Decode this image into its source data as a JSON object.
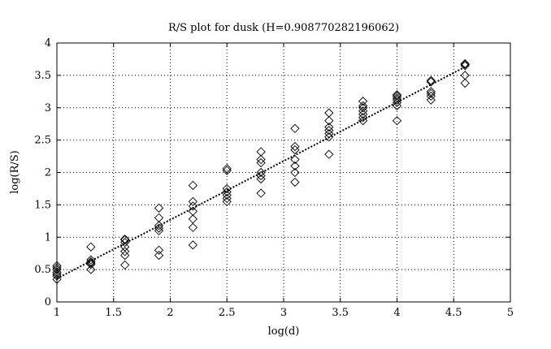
{
  "chart_data": {
    "type": "scatter",
    "title": "R/S plot for dusk (H=0.908770282196062)",
    "xlabel": "log(d)",
    "ylabel": "log(R/S)",
    "xlim": [
      1,
      5
    ],
    "ylim": [
      0,
      4
    ],
    "xticks": [
      1,
      1.5,
      2,
      2.5,
      3,
      3.5,
      4,
      4.5,
      5
    ],
    "yticks": [
      0,
      0.5,
      1,
      1.5,
      2,
      2.5,
      3,
      3.5,
      4
    ],
    "xtick_labels": [
      "1",
      "1.5",
      "2",
      "2.5",
      "3",
      "3.5",
      "4",
      "4.5",
      "5"
    ],
    "ytick_labels": [
      "0",
      "0.5",
      "1",
      "1.5",
      "2",
      "2.5",
      "3",
      "3.5",
      "4"
    ],
    "grid": true,
    "marker": "diamond",
    "series": [
      {
        "points": [
          [
            1.0,
            0.35
          ],
          [
            1.0,
            0.4
          ],
          [
            1.0,
            0.43
          ],
          [
            1.0,
            0.46
          ],
          [
            1.0,
            0.5
          ],
          [
            1.0,
            0.53
          ],
          [
            1.0,
            0.56
          ],
          [
            1.3,
            0.5
          ],
          [
            1.3,
            0.58
          ],
          [
            1.3,
            0.6
          ],
          [
            1.3,
            0.62
          ],
          [
            1.3,
            0.65
          ],
          [
            1.3,
            0.85
          ],
          [
            1.6,
            0.57
          ],
          [
            1.6,
            0.72
          ],
          [
            1.6,
            0.78
          ],
          [
            1.6,
            0.85
          ],
          [
            1.6,
            0.92
          ],
          [
            1.6,
            0.96
          ],
          [
            1.6,
            0.97
          ],
          [
            1.9,
            0.72
          ],
          [
            1.9,
            0.8
          ],
          [
            1.9,
            1.1
          ],
          [
            1.9,
            1.14
          ],
          [
            1.9,
            1.18
          ],
          [
            1.9,
            1.3
          ],
          [
            1.9,
            1.45
          ],
          [
            2.2,
            0.88
          ],
          [
            2.2,
            1.15
          ],
          [
            2.2,
            1.28
          ],
          [
            2.2,
            1.4
          ],
          [
            2.2,
            1.48
          ],
          [
            2.2,
            1.55
          ],
          [
            2.2,
            1.8
          ],
          [
            2.5,
            1.55
          ],
          [
            2.5,
            1.6
          ],
          [
            2.5,
            1.65
          ],
          [
            2.5,
            1.7
          ],
          [
            2.5,
            1.75
          ],
          [
            2.5,
            2.03
          ],
          [
            2.5,
            2.06
          ],
          [
            2.8,
            1.68
          ],
          [
            2.8,
            1.9
          ],
          [
            2.8,
            1.95
          ],
          [
            2.8,
            2.0
          ],
          [
            2.8,
            2.15
          ],
          [
            2.8,
            2.2
          ],
          [
            2.8,
            2.32
          ],
          [
            3.1,
            1.85
          ],
          [
            3.1,
            2.0
          ],
          [
            3.1,
            2.1
          ],
          [
            3.1,
            2.2
          ],
          [
            3.1,
            2.35
          ],
          [
            3.1,
            2.4
          ],
          [
            3.1,
            2.68
          ],
          [
            3.4,
            2.28
          ],
          [
            3.4,
            2.55
          ],
          [
            3.4,
            2.6
          ],
          [
            3.4,
            2.65
          ],
          [
            3.4,
            2.7
          ],
          [
            3.4,
            2.8
          ],
          [
            3.4,
            2.92
          ],
          [
            3.7,
            2.8
          ],
          [
            3.7,
            2.85
          ],
          [
            3.7,
            2.9
          ],
          [
            3.7,
            2.95
          ],
          [
            3.7,
            3.0
          ],
          [
            3.7,
            3.03
          ],
          [
            3.7,
            3.1
          ],
          [
            4.0,
            2.8
          ],
          [
            4.0,
            3.03
          ],
          [
            4.0,
            3.08
          ],
          [
            4.0,
            3.12
          ],
          [
            4.0,
            3.15
          ],
          [
            4.0,
            3.18
          ],
          [
            4.0,
            3.2
          ],
          [
            4.3,
            3.12
          ],
          [
            4.3,
            3.18
          ],
          [
            4.3,
            3.22
          ],
          [
            4.3,
            3.25
          ],
          [
            4.3,
            3.4
          ],
          [
            4.3,
            3.42
          ],
          [
            4.6,
            3.38
          ],
          [
            4.6,
            3.5
          ],
          [
            4.6,
            3.65
          ],
          [
            4.6,
            3.67
          ],
          [
            4.6,
            3.68
          ]
        ]
      }
    ],
    "fit_line": {
      "x": [
        1.0,
        4.6
      ],
      "y": [
        0.36,
        3.63
      ]
    }
  }
}
